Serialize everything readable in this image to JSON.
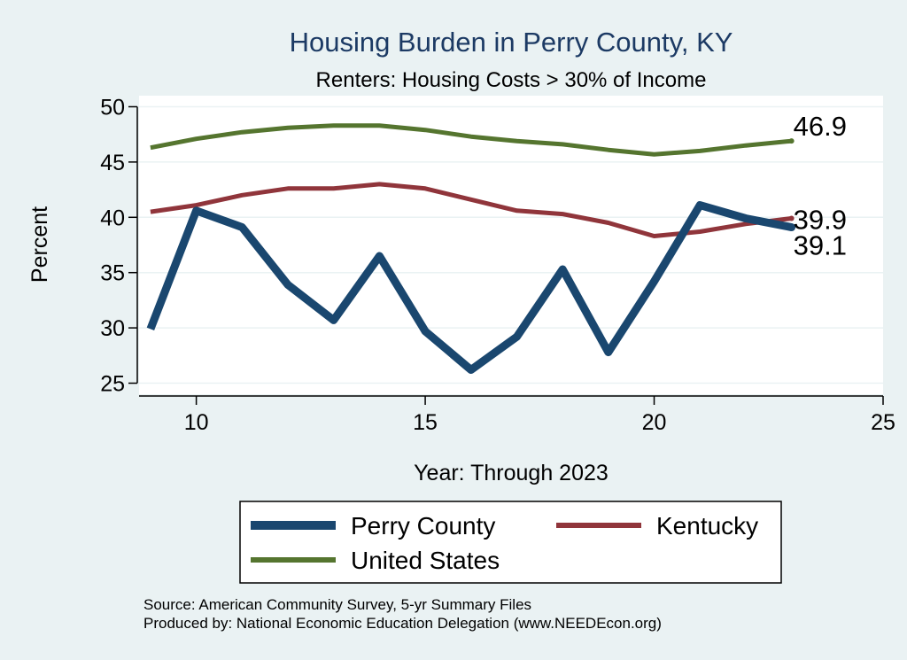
{
  "chart_data": {
    "type": "line",
    "title": "Housing Burden in Perry County, KY",
    "subtitle": "Renters: Housing Costs > 30% of Income",
    "xlabel": "Year: Through 2023",
    "ylabel": "Percent",
    "xlim": [
      8.75,
      25
    ],
    "ylim": [
      24,
      51
    ],
    "xticks": [
      10,
      15,
      20,
      25
    ],
    "yticks": [
      25,
      30,
      35,
      40,
      45,
      50
    ],
    "grid": true,
    "legend_position": "bottom",
    "x": [
      9,
      10,
      11,
      12,
      13,
      14,
      15,
      16,
      17,
      18,
      19,
      20,
      21,
      22,
      23
    ],
    "series": [
      {
        "name": "Perry County",
        "color": "#1a476f",
        "width": 9,
        "values": [
          29.9,
          40.6,
          39.1,
          33.9,
          30.7,
          36.5,
          29.7,
          26.2,
          29.2,
          35.3,
          27.8,
          34.2,
          41.1,
          39.9,
          39.1
        ],
        "end_label": "39.1"
      },
      {
        "name": "Kentucky",
        "color": "#90353b",
        "width": 5,
        "values": [
          40.5,
          41.1,
          42.0,
          42.6,
          42.6,
          43.0,
          42.6,
          41.6,
          40.6,
          40.3,
          39.5,
          38.3,
          38.7,
          39.4,
          39.9
        ],
        "end_label": "39.9"
      },
      {
        "name": "United States",
        "color": "#55752f",
        "width": 5,
        "values": [
          46.3,
          47.1,
          47.7,
          48.1,
          48.3,
          48.3,
          47.9,
          47.3,
          46.9,
          46.6,
          46.1,
          45.7,
          46.0,
          46.5,
          46.9
        ],
        "end_label": "46.9"
      }
    ],
    "notes": [
      "Source: American Community Survey, 5-yr Summary Files",
      "Produced by: National Economic Education Delegation (www.NEEDEcon.org)"
    ]
  }
}
